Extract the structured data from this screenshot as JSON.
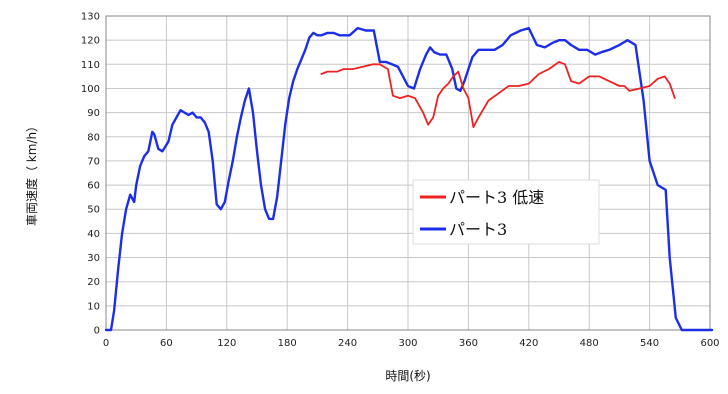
{
  "chart_data": {
    "type": "line",
    "xlabel": "時間(秒)",
    "ylabel": "車両速度（ km/h）",
    "xlim": [
      0,
      600
    ],
    "ylim": [
      0,
      130
    ],
    "xticks": [
      0,
      60,
      120,
      180,
      240,
      300,
      360,
      420,
      480,
      540,
      600
    ],
    "yticks": [
      0,
      10,
      20,
      30,
      40,
      50,
      60,
      70,
      80,
      90,
      100,
      110,
      120,
      130
    ],
    "grid": true,
    "legend_position": "center-right",
    "series": [
      {
        "name": "パート3 低速",
        "color": "#ee2222",
        "x": [
          214,
          220,
          230,
          236,
          245,
          255,
          265,
          272,
          280,
          285,
          292,
          300,
          307,
          315,
          320,
          325,
          330,
          335,
          340,
          345,
          350,
          355,
          360,
          365,
          370,
          380,
          390,
          400,
          410,
          420,
          430,
          440,
          450,
          456,
          462,
          470,
          480,
          490,
          500,
          510,
          515,
          520,
          530,
          540,
          548,
          555,
          560,
          565
        ],
        "y": [
          106,
          107,
          107,
          108,
          108,
          109,
          110,
          110,
          108,
          97,
          96,
          97,
          96,
          90,
          85,
          88,
          97,
          100,
          102,
          105,
          107,
          100,
          96,
          84,
          88,
          95,
          98,
          101,
          101,
          102,
          106,
          108,
          111,
          110,
          103,
          102,
          105,
          105,
          103,
          101,
          101,
          99,
          100,
          101,
          104,
          105,
          102,
          96
        ]
      },
      {
        "name": "パート3",
        "color": "#1c2ee8",
        "x": [
          0,
          5,
          8,
          12,
          16,
          20,
          24,
          28,
          30,
          34,
          38,
          42,
          46,
          48,
          52,
          56,
          62,
          66,
          70,
          74,
          78,
          82,
          86,
          90,
          94,
          98,
          102,
          106,
          110,
          114,
          118,
          122,
          126,
          130,
          134,
          138,
          142,
          146,
          150,
          154,
          158,
          162,
          166,
          170,
          174,
          178,
          182,
          186,
          190,
          194,
          198,
          202,
          206,
          210,
          214,
          220,
          226,
          232,
          236,
          242,
          250,
          258,
          266,
          272,
          278,
          284,
          290,
          300,
          306,
          312,
          318,
          322,
          326,
          332,
          338,
          344,
          348,
          352,
          356,
          360,
          364,
          370,
          378,
          386,
          394,
          402,
          412,
          420,
          428,
          436,
          444,
          450,
          456,
          462,
          470,
          478,
          486,
          492,
          500,
          510,
          518,
          526,
          534,
          540,
          548,
          556,
          560,
          566,
          572,
          576,
          582,
          586,
          590,
          594,
          598,
          602
        ],
        "y": [
          0,
          0,
          8,
          25,
          40,
          50,
          56,
          53,
          60,
          68,
          72,
          74,
          82,
          81,
          75,
          74,
          78,
          85,
          88,
          91,
          90,
          89,
          90,
          88,
          88,
          86,
          82,
          70,
          52,
          50,
          53,
          62,
          70,
          80,
          88,
          95,
          100,
          90,
          74,
          60,
          50,
          46,
          46,
          55,
          70,
          85,
          96,
          103,
          108,
          112,
          116,
          121,
          123,
          122,
          122,
          123,
          123,
          122,
          122,
          122,
          125,
          124,
          124,
          111,
          111,
          110,
          109,
          101,
          100,
          108,
          114,
          117,
          115,
          114,
          114,
          108,
          100,
          99,
          103,
          108,
          113,
          116,
          116,
          116,
          118,
          122,
          124,
          125,
          118,
          117,
          119,
          120,
          120,
          118,
          116,
          116,
          114,
          115,
          116,
          118,
          120,
          118,
          95,
          70,
          60,
          58,
          30,
          5,
          0,
          0,
          0,
          0,
          0,
          0,
          0,
          0
        ]
      }
    ]
  }
}
